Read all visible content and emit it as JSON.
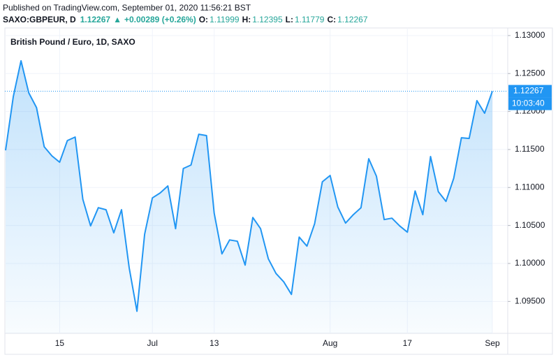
{
  "chart_data": {
    "type": "area",
    "publisher": "Published on TradingView.com, September 01, 2020 11:56:21 BST",
    "symbol": "SAXO:GBPEUR, D",
    "last": 1.12267,
    "change": "+0.00289 (+0.26%)",
    "ohlc": [
      {
        "label": "O:",
        "value": "1.11999"
      },
      {
        "label": "H:",
        "value": "1.12395"
      },
      {
        "label": "L:",
        "value": "1.11779"
      },
      {
        "label": "C:",
        "value": "1.12267"
      }
    ],
    "title": "British Pound / Euro, 1D, SAXO",
    "categories": [
      null,
      null,
      null,
      null,
      null,
      null,
      null,
      "15",
      null,
      null,
      null,
      null,
      null,
      null,
      null,
      null,
      null,
      null,
      null,
      "Jul",
      null,
      null,
      null,
      null,
      null,
      null,
      null,
      "13",
      null,
      null,
      null,
      null,
      null,
      null,
      null,
      null,
      null,
      null,
      null,
      null,
      null,
      null,
      "Aug",
      null,
      null,
      null,
      null,
      null,
      null,
      null,
      null,
      null,
      "17",
      null,
      null,
      null,
      null,
      null,
      null,
      null,
      null,
      null,
      null,
      "Sep"
    ],
    "values": [
      1.11489,
      1.12199,
      1.12668,
      1.12245,
      1.12051,
      1.11536,
      1.11416,
      1.11333,
      1.11618,
      1.11664,
      1.10845,
      1.10495,
      1.10734,
      1.10707,
      1.10403,
      1.10707,
      1.09942,
      1.09371,
      1.10384,
      1.10863,
      1.10928,
      1.1102,
      1.10458,
      1.1125,
      1.11296,
      1.11701,
      1.11683,
      1.10661,
      1.10126,
      1.1031,
      1.10292,
      1.09979,
      1.10605,
      1.10458,
      1.10062,
      1.09868,
      1.09758,
      1.09592,
      1.10347,
      1.10228,
      1.10522,
      1.11075,
      1.11158,
      1.10743,
      1.10532,
      1.10642,
      1.10734,
      1.11379,
      1.11149,
      1.10578,
      1.10596,
      1.10495,
      1.10412,
      1.10955,
      1.10642,
      1.11407,
      1.10946,
      1.10817,
      1.11121,
      1.11655,
      1.11646,
      1.12143,
      1.11978,
      1.12267
    ],
    "color": "#2196f3",
    "ylim": [
      1.0908,
      1.131
    ],
    "yticks": [
      {
        "value": 1.095,
        "label": "1.09500"
      },
      {
        "value": 1.1,
        "label": "1.10000"
      },
      {
        "value": 1.105,
        "label": "1.10500"
      },
      {
        "value": 1.11,
        "label": "1.11000"
      },
      {
        "value": 1.115,
        "label": "1.11500"
      },
      {
        "value": 1.12,
        "label": "1.12000"
      },
      {
        "value": 1.125,
        "label": "1.12500"
      },
      {
        "value": 1.13,
        "label": "1.13000"
      }
    ],
    "last_price": 1.12267,
    "countdown": "10:03:40",
    "grid": true
  }
}
